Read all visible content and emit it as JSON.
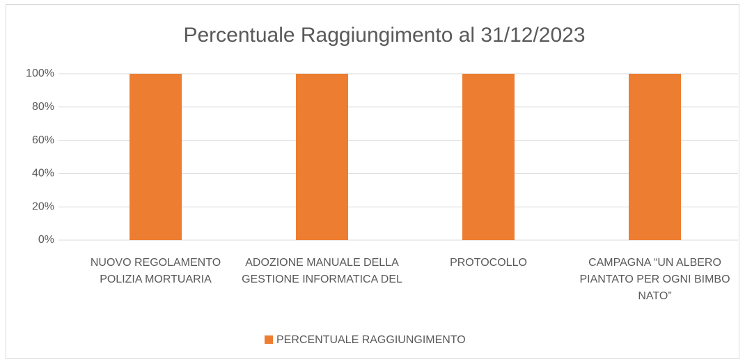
{
  "chart_data": {
    "type": "bar",
    "title": "Percentuale Raggiungimento al 31/12/2023",
    "categories": [
      "NUOVO REGOLAMENTO POLIZIA MORTUARIA",
      "ADOZIONE MANUALE DELLA GESTIONE INFORMATICA DEL",
      "PROTOCOLLO",
      "CAMPAGNA “UN ALBERO PIANTATO PER OGNI BIMBO NATO”"
    ],
    "series": [
      {
        "name": "PERCENTUALE RAGGIUNGIMENTO",
        "color": "#ed7d31",
        "values": [
          100,
          100,
          100,
          100
        ]
      }
    ],
    "ylim": [
      0,
      100
    ],
    "yticks": [
      {
        "value": 0,
        "label": "0%"
      },
      {
        "value": 20,
        "label": "20%"
      },
      {
        "value": 40,
        "label": "40%"
      },
      {
        "value": 60,
        "label": "60%"
      },
      {
        "value": 80,
        "label": "80%"
      },
      {
        "value": 100,
        "label": "100%"
      }
    ],
    "grid": true,
    "legend": "bottom"
  }
}
